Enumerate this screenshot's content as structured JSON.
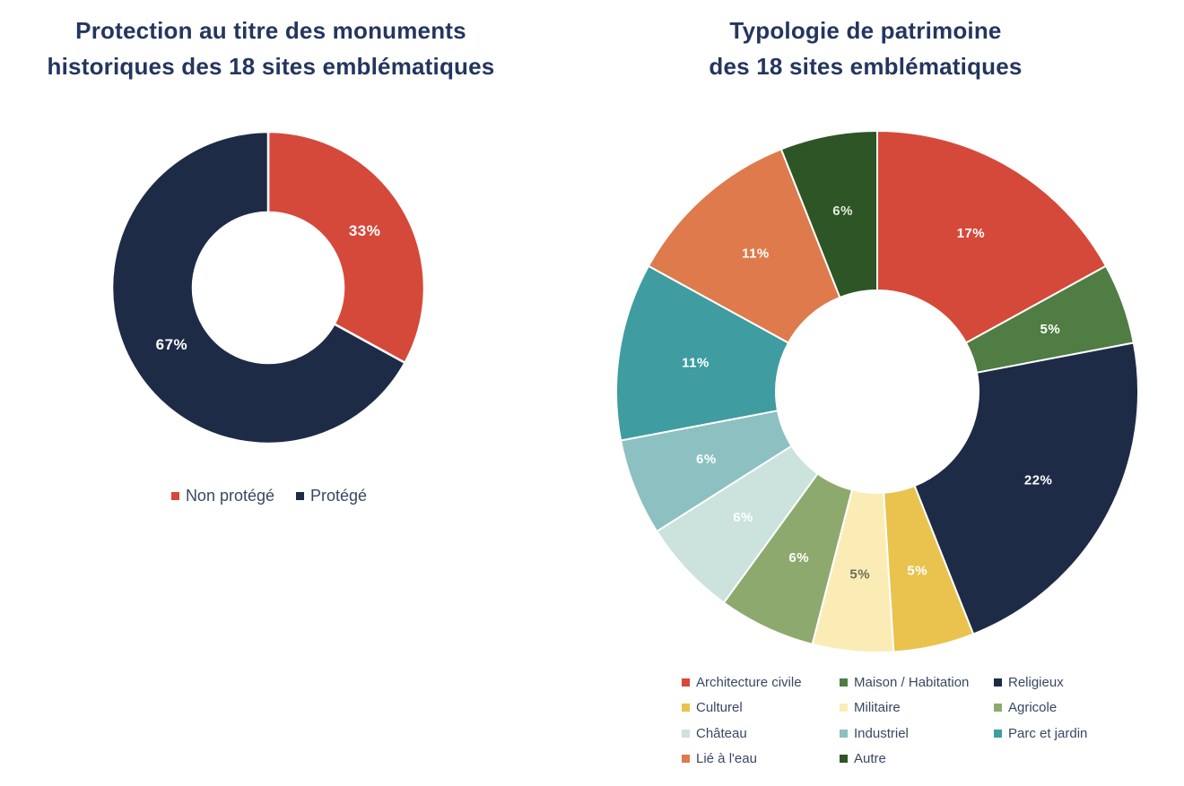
{
  "page": {
    "background": "#ffffff",
    "title_color": "#24365f",
    "legend_text_color": "#3a4763"
  },
  "chart_data": [
    {
      "type": "pie",
      "subtype": "donut",
      "title": "Protection au titre des monuments historiques des 18 sites emblématiques",
      "title_lines": [
        "Protection au titre des monuments",
        "historiques des 18 sites emblématiques"
      ],
      "legend_position": "bottom",
      "start_angle_deg": -90,
      "direction": "clockwise",
      "segments": [
        {
          "label": "Non protégé",
          "value": 33,
          "display": "33%",
          "color": "#d5493a",
          "label_color": "#ffffff"
        },
        {
          "label": "Protégé",
          "value": 67,
          "display": "67%",
          "color": "#1e2b47",
          "label_color": "#ffffff"
        }
      ]
    },
    {
      "type": "pie",
      "subtype": "donut",
      "title": "Typologie de patrimoine des 18 sites emblématiques",
      "title_lines": [
        "Typologie de patrimoine",
        "des 18 sites emblématiques"
      ],
      "legend_position": "bottom",
      "start_angle_deg": -90,
      "direction": "clockwise",
      "segments": [
        {
          "label": "Architecture civile",
          "value": 17,
          "display": "17%",
          "color": "#d5493a",
          "label_color": "#ffffff"
        },
        {
          "label": "Maison / Habitation",
          "value": 5,
          "display": "5%",
          "color": "#4f7d43",
          "label_color": "#ffffff"
        },
        {
          "label": "Religieux",
          "value": 22,
          "display": "22%",
          "color": "#1e2b47",
          "label_color": "#ffffff"
        },
        {
          "label": "Culturel",
          "value": 5,
          "display": "5%",
          "color": "#e9c34d",
          "label_color": "#ffffff"
        },
        {
          "label": "Militaire",
          "value": 5,
          "display": "5%",
          "color": "#faecb4",
          "label_color": "#6f6f60"
        },
        {
          "label": "Agricole",
          "value": 6,
          "display": "6%",
          "color": "#8ea96e",
          "label_color": "#ffffff"
        },
        {
          "label": "Château",
          "value": 6,
          "display": "6%",
          "color": "#cbe2dd",
          "label_color": "#ffffff"
        },
        {
          "label": "Industriel",
          "value": 6,
          "display": "6%",
          "color": "#8cc0c1",
          "label_color": "#ffffff"
        },
        {
          "label": "Parc et jardin",
          "value": 11,
          "display": "11%",
          "color": "#3f9ca0",
          "label_color": "#ffffff"
        },
        {
          "label": "Lié à l'eau",
          "value": 11,
          "display": "11%",
          "color": "#de7a4b",
          "label_color": "#ffffff"
        },
        {
          "label": "Autre",
          "value": 6,
          "display": "6%",
          "color": "#2d5526",
          "label_color": "#e4ecdd"
        }
      ]
    }
  ]
}
